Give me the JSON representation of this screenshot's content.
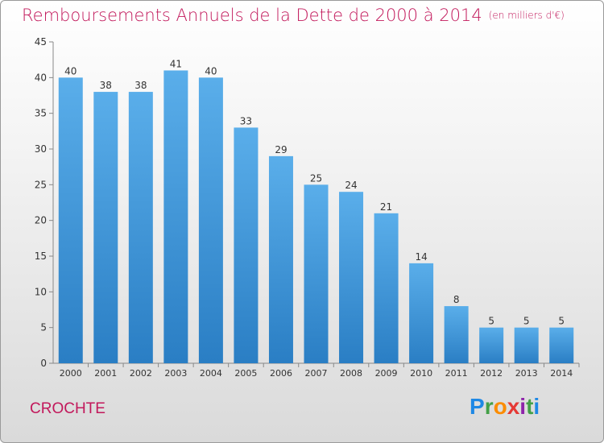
{
  "title": "Remboursements Annuels de la Dette de 2000 à 2014",
  "unit_note": "(en milliers d'€)",
  "commune": "CROCHTE",
  "logo_text": "Proxiti",
  "colors": {
    "title": "#c2185b",
    "bar_top": "#5aaeea",
    "bar_bottom": "#2a7ec4"
  },
  "chart_data": {
    "type": "bar",
    "title": "Remboursements Annuels de la Dette de 2000 à 2014",
    "categories": [
      "2000",
      "2001",
      "2002",
      "2003",
      "2004",
      "2005",
      "2006",
      "2007",
      "2008",
      "2009",
      "2010",
      "2011",
      "2012",
      "2013",
      "2014"
    ],
    "values": [
      40,
      38,
      38,
      41,
      40,
      33,
      29,
      25,
      24,
      21,
      14,
      8,
      5,
      5,
      5
    ],
    "ylim": [
      0,
      45
    ],
    "yticks": [
      0,
      5,
      10,
      15,
      20,
      25,
      30,
      35,
      40,
      45
    ],
    "grid": false,
    "data_labels": true
  }
}
